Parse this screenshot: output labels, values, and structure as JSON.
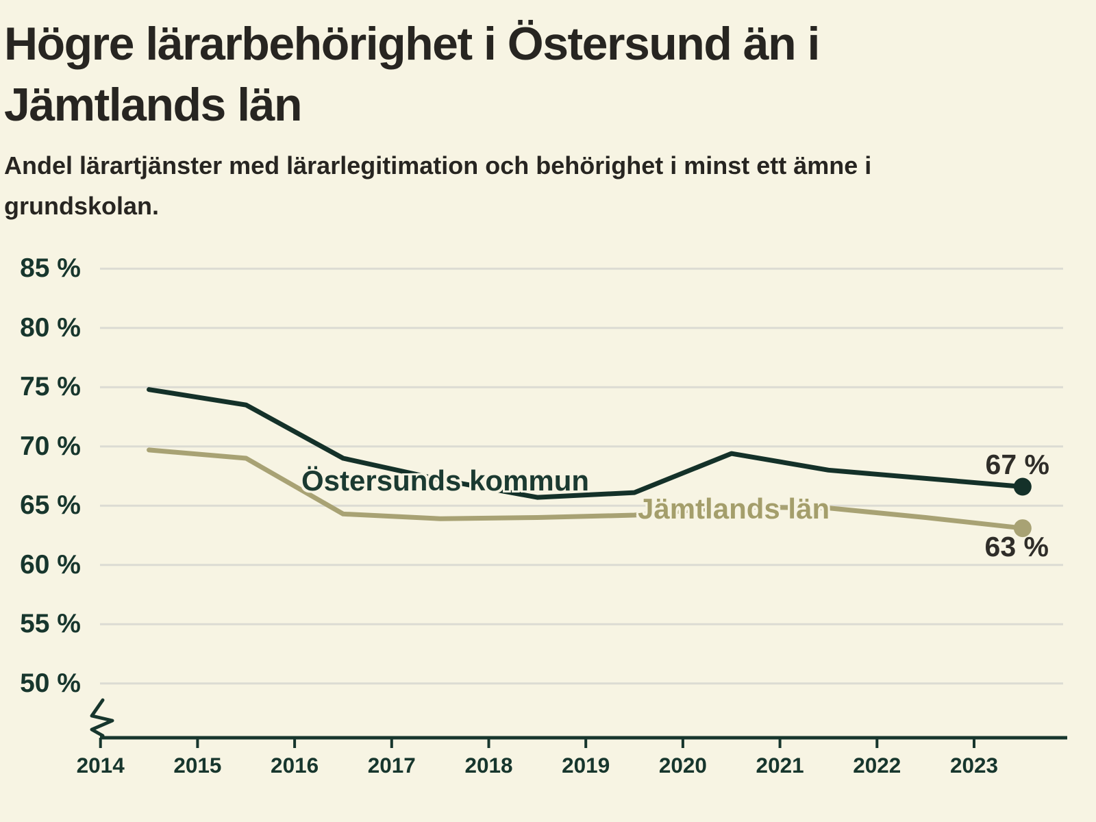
{
  "header": {
    "title_line1": "Högre lärarbehörighet i Östersund än i",
    "title_line2": "Jämtlands län",
    "subtitle_line1": "Andel lärartjänster med lärarlegitimation och behörighet i minst ett ämne i",
    "subtitle_line2": "grundskolan."
  },
  "colors": {
    "background": "#f7f4e3",
    "text": "#272521",
    "axis": "#17362d",
    "gridline": "#dcdbd3",
    "value_label": "#2f2d29"
  },
  "chart_data": {
    "type": "line",
    "title": "Högre lärarbehörighet i Östersund än i Jämtlands län",
    "subtitle": "Andel lärartjänster med lärarlegitimation och behörighet i minst ett ämne i grundskolan.",
    "x": [
      2014.5,
      2015.5,
      2016.5,
      2017.5,
      2018.5,
      2019.5,
      2020.5,
      2021.5,
      2022.5,
      2023.5
    ],
    "x_ticks": [
      2014,
      2015,
      2016,
      2017,
      2018,
      2019,
      2020,
      2021,
      2022,
      2023
    ],
    "x_tick_labels": [
      "2014",
      "2015",
      "2016",
      "2017",
      "2018",
      "2019",
      "2020",
      "2021",
      "2022",
      "2023"
    ],
    "y_ticks": [
      85,
      80,
      75,
      70,
      65,
      60,
      55,
      50
    ],
    "y_tick_labels": [
      "85 %",
      "80 %",
      "75 %",
      "70 %",
      "65 %",
      "60 %",
      "55 %",
      "50 %"
    ],
    "ylim": [
      50,
      85
    ],
    "axis_break": true,
    "grid": true,
    "legend_position": "inline-labels",
    "series": [
      {
        "name": "Östersunds kommun",
        "color": "#143129",
        "values": [
          74.8,
          73.5,
          69.0,
          67.2,
          65.7,
          66.1,
          69.4,
          68.0,
          67.3,
          66.6
        ],
        "end_label": "67 %"
      },
      {
        "name": "Jämtlands län",
        "color": "#a8a274",
        "values": [
          69.7,
          69.0,
          64.3,
          63.9,
          64.0,
          64.2,
          64.9,
          64.8,
          64.0,
          63.1
        ],
        "end_label": "63 %"
      }
    ]
  }
}
